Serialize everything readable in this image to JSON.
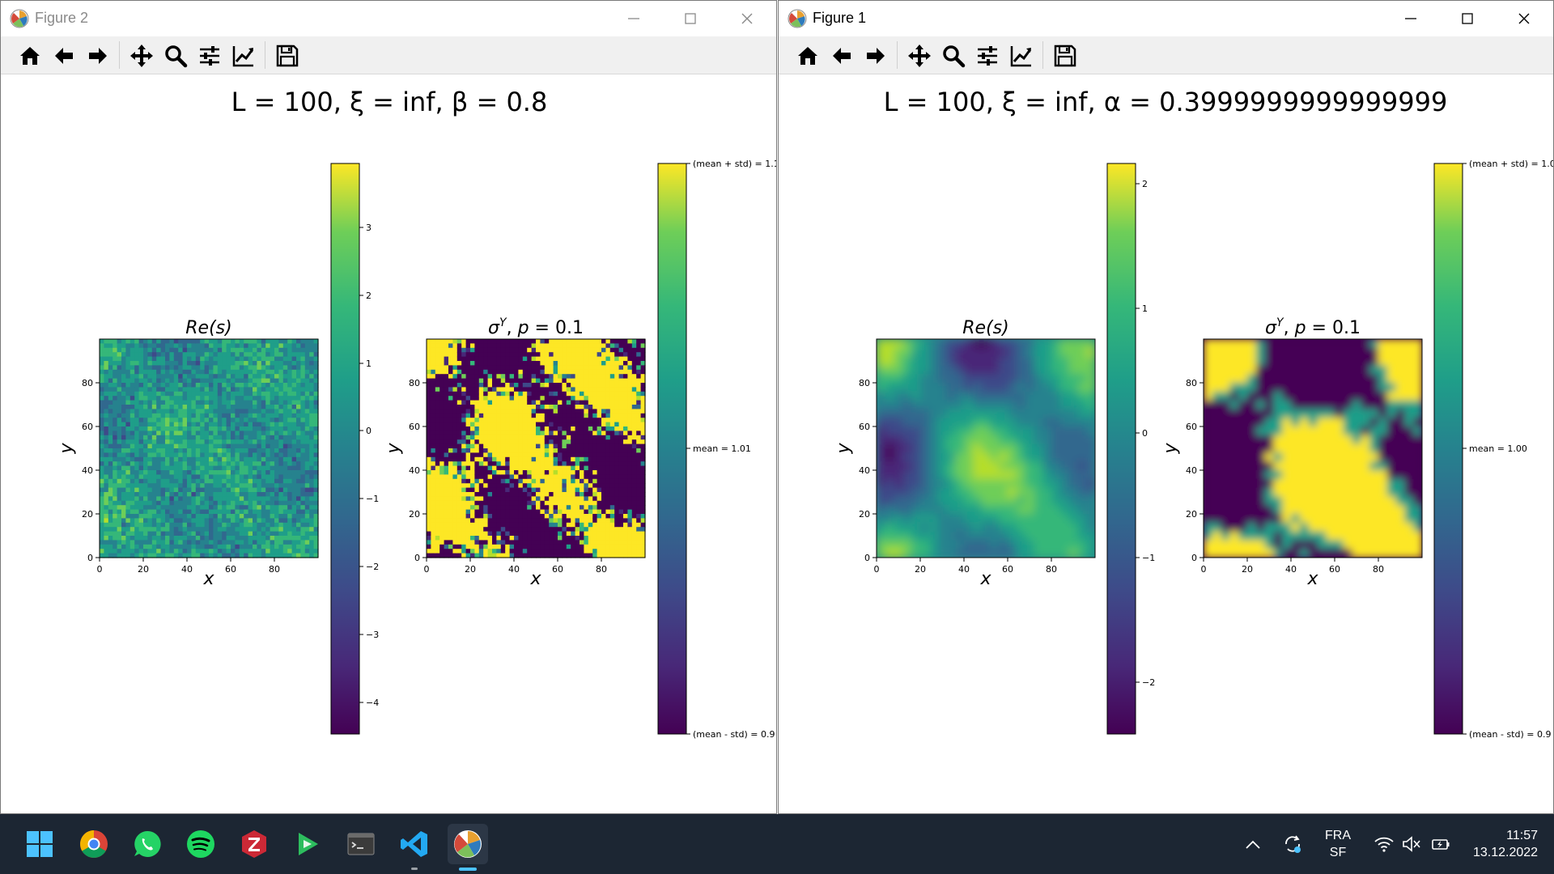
{
  "windows": {
    "figure2": {
      "title": "Figure 2",
      "suptitle": "L = 100, ξ = inf, β = 0.8",
      "left": {
        "title": "Re(s)",
        "xlabel": "x",
        "ylabel": "y",
        "xticks": [
          "0",
          "20",
          "40",
          "60",
          "80"
        ],
        "yticks": [
          "0",
          "20",
          "40",
          "60",
          "80"
        ],
        "colorbar_ticks": [
          "3",
          "2",
          "1",
          "0",
          "−1",
          "−2",
          "−3",
          "−4"
        ]
      },
      "right": {
        "title": "σ^Y, p = 0.1",
        "xlabel": "x",
        "ylabel": "y",
        "xticks": [
          "0",
          "20",
          "40",
          "60",
          "80"
        ],
        "yticks": [
          "0",
          "20",
          "40",
          "60",
          "80"
        ],
        "colorbar_ticks": [
          "(mean + std) = 1.1",
          "mean = 1.01",
          "(mean - std) = 0.9"
        ]
      }
    },
    "figure1": {
      "title": "Figure 1",
      "suptitle": "L = 100, ξ = inf, α = 0.3999999999999999",
      "left": {
        "title": "Re(s)",
        "xlabel": "x",
        "ylabel": "y",
        "xticks": [
          "0",
          "20",
          "40",
          "60",
          "80"
        ],
        "yticks": [
          "0",
          "20",
          "40",
          "60",
          "80"
        ],
        "colorbar_ticks": [
          "2",
          "1",
          "0",
          "−1",
          "−2"
        ]
      },
      "right": {
        "title": "σ^Y, p = 0.1",
        "xlabel": "x",
        "ylabel": "y",
        "xticks": [
          "0",
          "20",
          "40",
          "60",
          "80"
        ],
        "yticks": [
          "0",
          "20",
          "40",
          "60",
          "80"
        ],
        "colorbar_ticks": [
          "(mean + std) = 1.0",
          "mean = 1.00",
          "(mean - std) = 0.9"
        ]
      }
    }
  },
  "toolbar_icons": [
    "home-icon",
    "back-arrow-icon",
    "forward-arrow-icon",
    "pan-icon",
    "zoom-icon",
    "configure-subplots-icon",
    "edit-axes-icon",
    "save-icon"
  ],
  "taskbar": {
    "apps": [
      "windows-start-icon",
      "chrome-icon",
      "whatsapp-icon",
      "spotify-icon",
      "zotero-icon",
      "app-icon",
      "terminal-icon",
      "vscode-icon",
      "matplotlib-icon"
    ],
    "lang": "FRA",
    "layout": "SF",
    "time": "11:57",
    "date": "13.12.2022"
  },
  "colors": {
    "viridis_dark": "#440154",
    "viridis_mid": "#21918c",
    "viridis_bright": "#fde725",
    "taskbar_bg": "#1c2633"
  }
}
